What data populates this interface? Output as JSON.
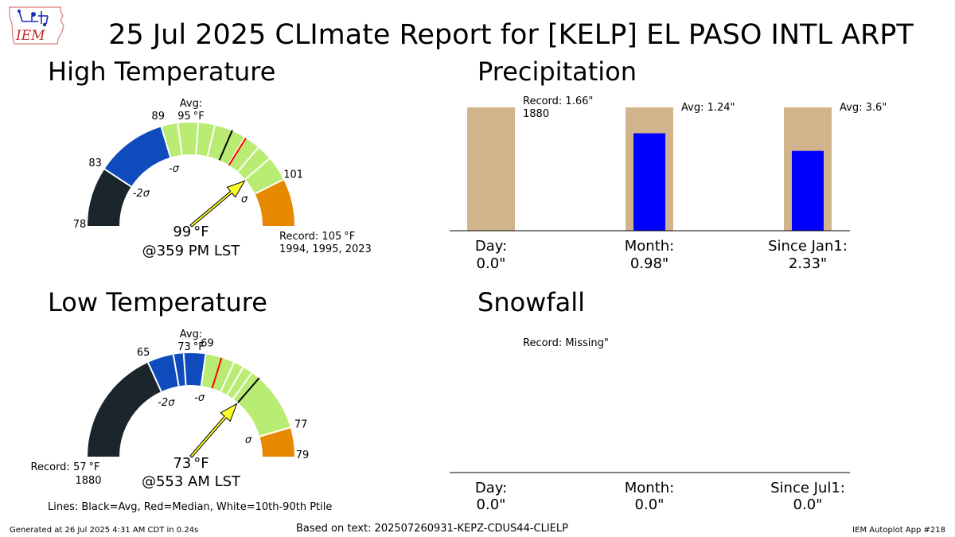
{
  "header": {
    "logo_text": "IEM",
    "title": "25 Jul 2025 CLImate Report for [KELP] EL PASO INTL ARPT"
  },
  "colors": {
    "very_low": "#1b262c",
    "low": "#0f4bbd",
    "normal": "#b9ec73",
    "high": "#e68900",
    "needle": "#ffff28",
    "precip_bar": "#0000ff",
    "precip_ref": "#d2b48c",
    "median_line": "#ff0000",
    "avg_line": "#000000"
  },
  "high_temp": {
    "heading": "High Temperature",
    "avg_label": "Avg:",
    "avg_value": "95",
    "unit": "°F",
    "observed": "99",
    "observed_time": "@359 PM LST",
    "record_label": "Record: 105",
    "record_years": "1994, 1995, 2023",
    "tick_labels": [
      {
        "text": "78",
        "value": 78,
        "side": "left"
      },
      {
        "text": "83",
        "value": 83,
        "side": "left"
      },
      {
        "text": "89",
        "value": 89,
        "side": "left"
      },
      {
        "text": "101",
        "value": 101,
        "side": "right"
      }
    ],
    "sigma_labels": [
      {
        "text": "-2σ",
        "value": 83
      },
      {
        "text": "-σ",
        "value": 89
      },
      {
        "text": "σ",
        "value": 101
      }
    ]
  },
  "low_temp": {
    "heading": "Low Temperature",
    "avg_label": "Avg:",
    "avg_value": "73",
    "unit": "°F",
    "observed": "73",
    "observed_time": "@553 AM LST",
    "record_label": "Record: 57",
    "record_years": "1880",
    "tick_labels": [
      {
        "text": "65",
        "value": 65,
        "side": "left"
      },
      {
        "text": "69",
        "value": 69,
        "side": "left"
      },
      {
        "text": "77",
        "value": 77,
        "side": "right"
      },
      {
        "text": "79",
        "value": 79,
        "side": "right"
      }
    ],
    "sigma_labels": [
      {
        "text": "-2σ",
        "value": 65
      },
      {
        "text": "-σ",
        "value": 69
      },
      {
        "text": "σ",
        "value": 77
      }
    ]
  },
  "precip": {
    "heading": "Precipitation",
    "record_note": "Record: 1.66\"",
    "record_year": "1880",
    "groups": [
      {
        "xlabel": "Day:",
        "value_label": "0.0\"",
        "note": "",
        "value": 0.0
      },
      {
        "xlabel": "Month:",
        "value_label": "0.98\"",
        "note": "Avg: 1.24\"",
        "value": 0.98
      },
      {
        "xlabel": "Since Jan1:",
        "value_label": "2.33\"",
        "note": "Avg: 3.6\"",
        "value": 2.33
      }
    ]
  },
  "snow": {
    "heading": "Snowfall",
    "record_note": "Record: Missing\"",
    "groups": [
      {
        "xlabel": "Day:",
        "value_label": "0.0\""
      },
      {
        "xlabel": "Month:",
        "value_label": "0.0\""
      },
      {
        "xlabel": "Since Jul1:",
        "value_label": "0.0\""
      }
    ]
  },
  "footer": {
    "legend_note": "Lines: Black=Avg, Red=Median, White=10th-90th Ptile",
    "generated": "Generated at 26 Jul 2025 4:31 AM CDT in 0.24s",
    "source": "Based on text: 202507260931-KEPZ-CDUS44-CLIELP",
    "app": "IEM Autoplot App #218"
  },
  "chart_data": [
    {
      "type": "gauge",
      "title": "High Temperature",
      "units": "°F",
      "range": [
        78,
        105
      ],
      "bands": [
        {
          "from": 78,
          "to": 83,
          "color": "#1b262c"
        },
        {
          "from": 83,
          "to": 89,
          "color": "#0f4bbd"
        },
        {
          "from": 89,
          "to": 101,
          "color": "#b9ec73"
        },
        {
          "from": 101,
          "to": 105,
          "color": "#e68900"
        }
      ],
      "white_lines": [
        90.4,
        92.1,
        93.5,
        96.2,
        97.6,
        98.9
      ],
      "average": 95,
      "median": 96.3,
      "observed": 99,
      "record": 105
    },
    {
      "type": "gauge",
      "title": "Low Temperature",
      "units": "°F",
      "range": [
        57,
        79
      ],
      "bands": [
        {
          "from": 57,
          "to": 65,
          "color": "#1b262c"
        },
        {
          "from": 65,
          "to": 69,
          "color": "#0f4bbd"
        },
        {
          "from": 69,
          "to": 77,
          "color": "#b9ec73"
        },
        {
          "from": 77,
          "to": 79,
          "color": "#e68900"
        }
      ],
      "white_lines": [
        66.8,
        67.5,
        71.0,
        71.7,
        72.4
      ],
      "average": 73,
      "median": 70.1,
      "observed": 73,
      "record": 57
    },
    {
      "type": "bar",
      "title": "Precipitation",
      "categories": [
        "Day:",
        "Month:",
        "Since Jan1:"
      ],
      "series": [
        {
          "name": "",
          "values": [
            1.66,
            1.24,
            3.6
          ],
          "color": "#d2b48c"
        },
        {
          "name": "",
          "values": [
            0.0,
            0.98,
            2.33
          ],
          "color": "#0000ff"
        }
      ],
      "normalized_to_reference": true
    },
    {
      "type": "bar",
      "title": "Snowfall",
      "categories": [
        "Day:",
        "Month:",
        "Since Jul1:"
      ],
      "series": [
        {
          "name": "",
          "values": [
            0.0,
            0.0,
            0.0
          ],
          "color": "#0000ff"
        }
      ]
    }
  ]
}
